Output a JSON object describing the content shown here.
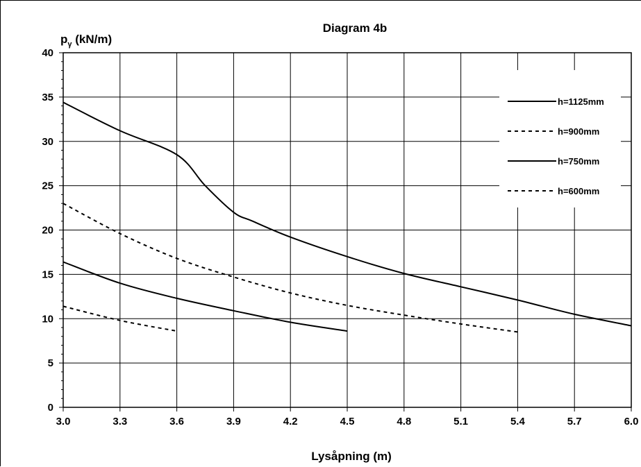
{
  "chart_data": {
    "type": "line",
    "title": "Diagram 4b",
    "ylabel_main": "p",
    "ylabel_sub": "γ",
    "ylabel_rest": " (kN/m)",
    "xlabel": "Lysåpning (m)",
    "xlim": [
      3.0,
      6.0
    ],
    "ylim": [
      0,
      40
    ],
    "xticks": [
      "3.0",
      "3.3",
      "3.6",
      "3.9",
      "4.2",
      "4.5",
      "4.8",
      "5.1",
      "5.4",
      "5.7",
      "6.0"
    ],
    "yticks": [
      "0",
      "5",
      "10",
      "15",
      "20",
      "25",
      "30",
      "35",
      "40"
    ],
    "grid": true,
    "legend_position": "top-right",
    "series": [
      {
        "name": "h=1125mm",
        "style": "solid",
        "color": "#000000",
        "x": [
          3.0,
          3.3,
          3.6,
          3.75,
          3.9,
          4.0,
          4.2,
          4.5,
          4.8,
          5.1,
          5.4,
          5.7,
          6.0
        ],
        "y": [
          34.4,
          31.2,
          28.5,
          25.0,
          22.0,
          21.0,
          19.2,
          17.0,
          15.1,
          13.6,
          12.1,
          10.5,
          9.2
        ]
      },
      {
        "name": "h=900mm",
        "style": "dashed",
        "color": "#000000",
        "x": [
          3.0,
          3.3,
          3.6,
          3.9,
          4.2,
          4.5,
          4.8,
          5.1,
          5.4
        ],
        "y": [
          23.0,
          19.6,
          16.8,
          14.7,
          12.9,
          11.5,
          10.4,
          9.4,
          8.5
        ]
      },
      {
        "name": "h=750mm",
        "style": "solid",
        "color": "#000000",
        "x": [
          3.0,
          3.3,
          3.6,
          3.9,
          4.2,
          4.5
        ],
        "y": [
          16.4,
          14.0,
          12.3,
          10.9,
          9.6,
          8.6
        ]
      },
      {
        "name": "h=600mm",
        "style": "dashed",
        "color": "#000000",
        "x": [
          3.0,
          3.3,
          3.6
        ],
        "y": [
          11.4,
          9.8,
          8.6
        ]
      }
    ]
  }
}
